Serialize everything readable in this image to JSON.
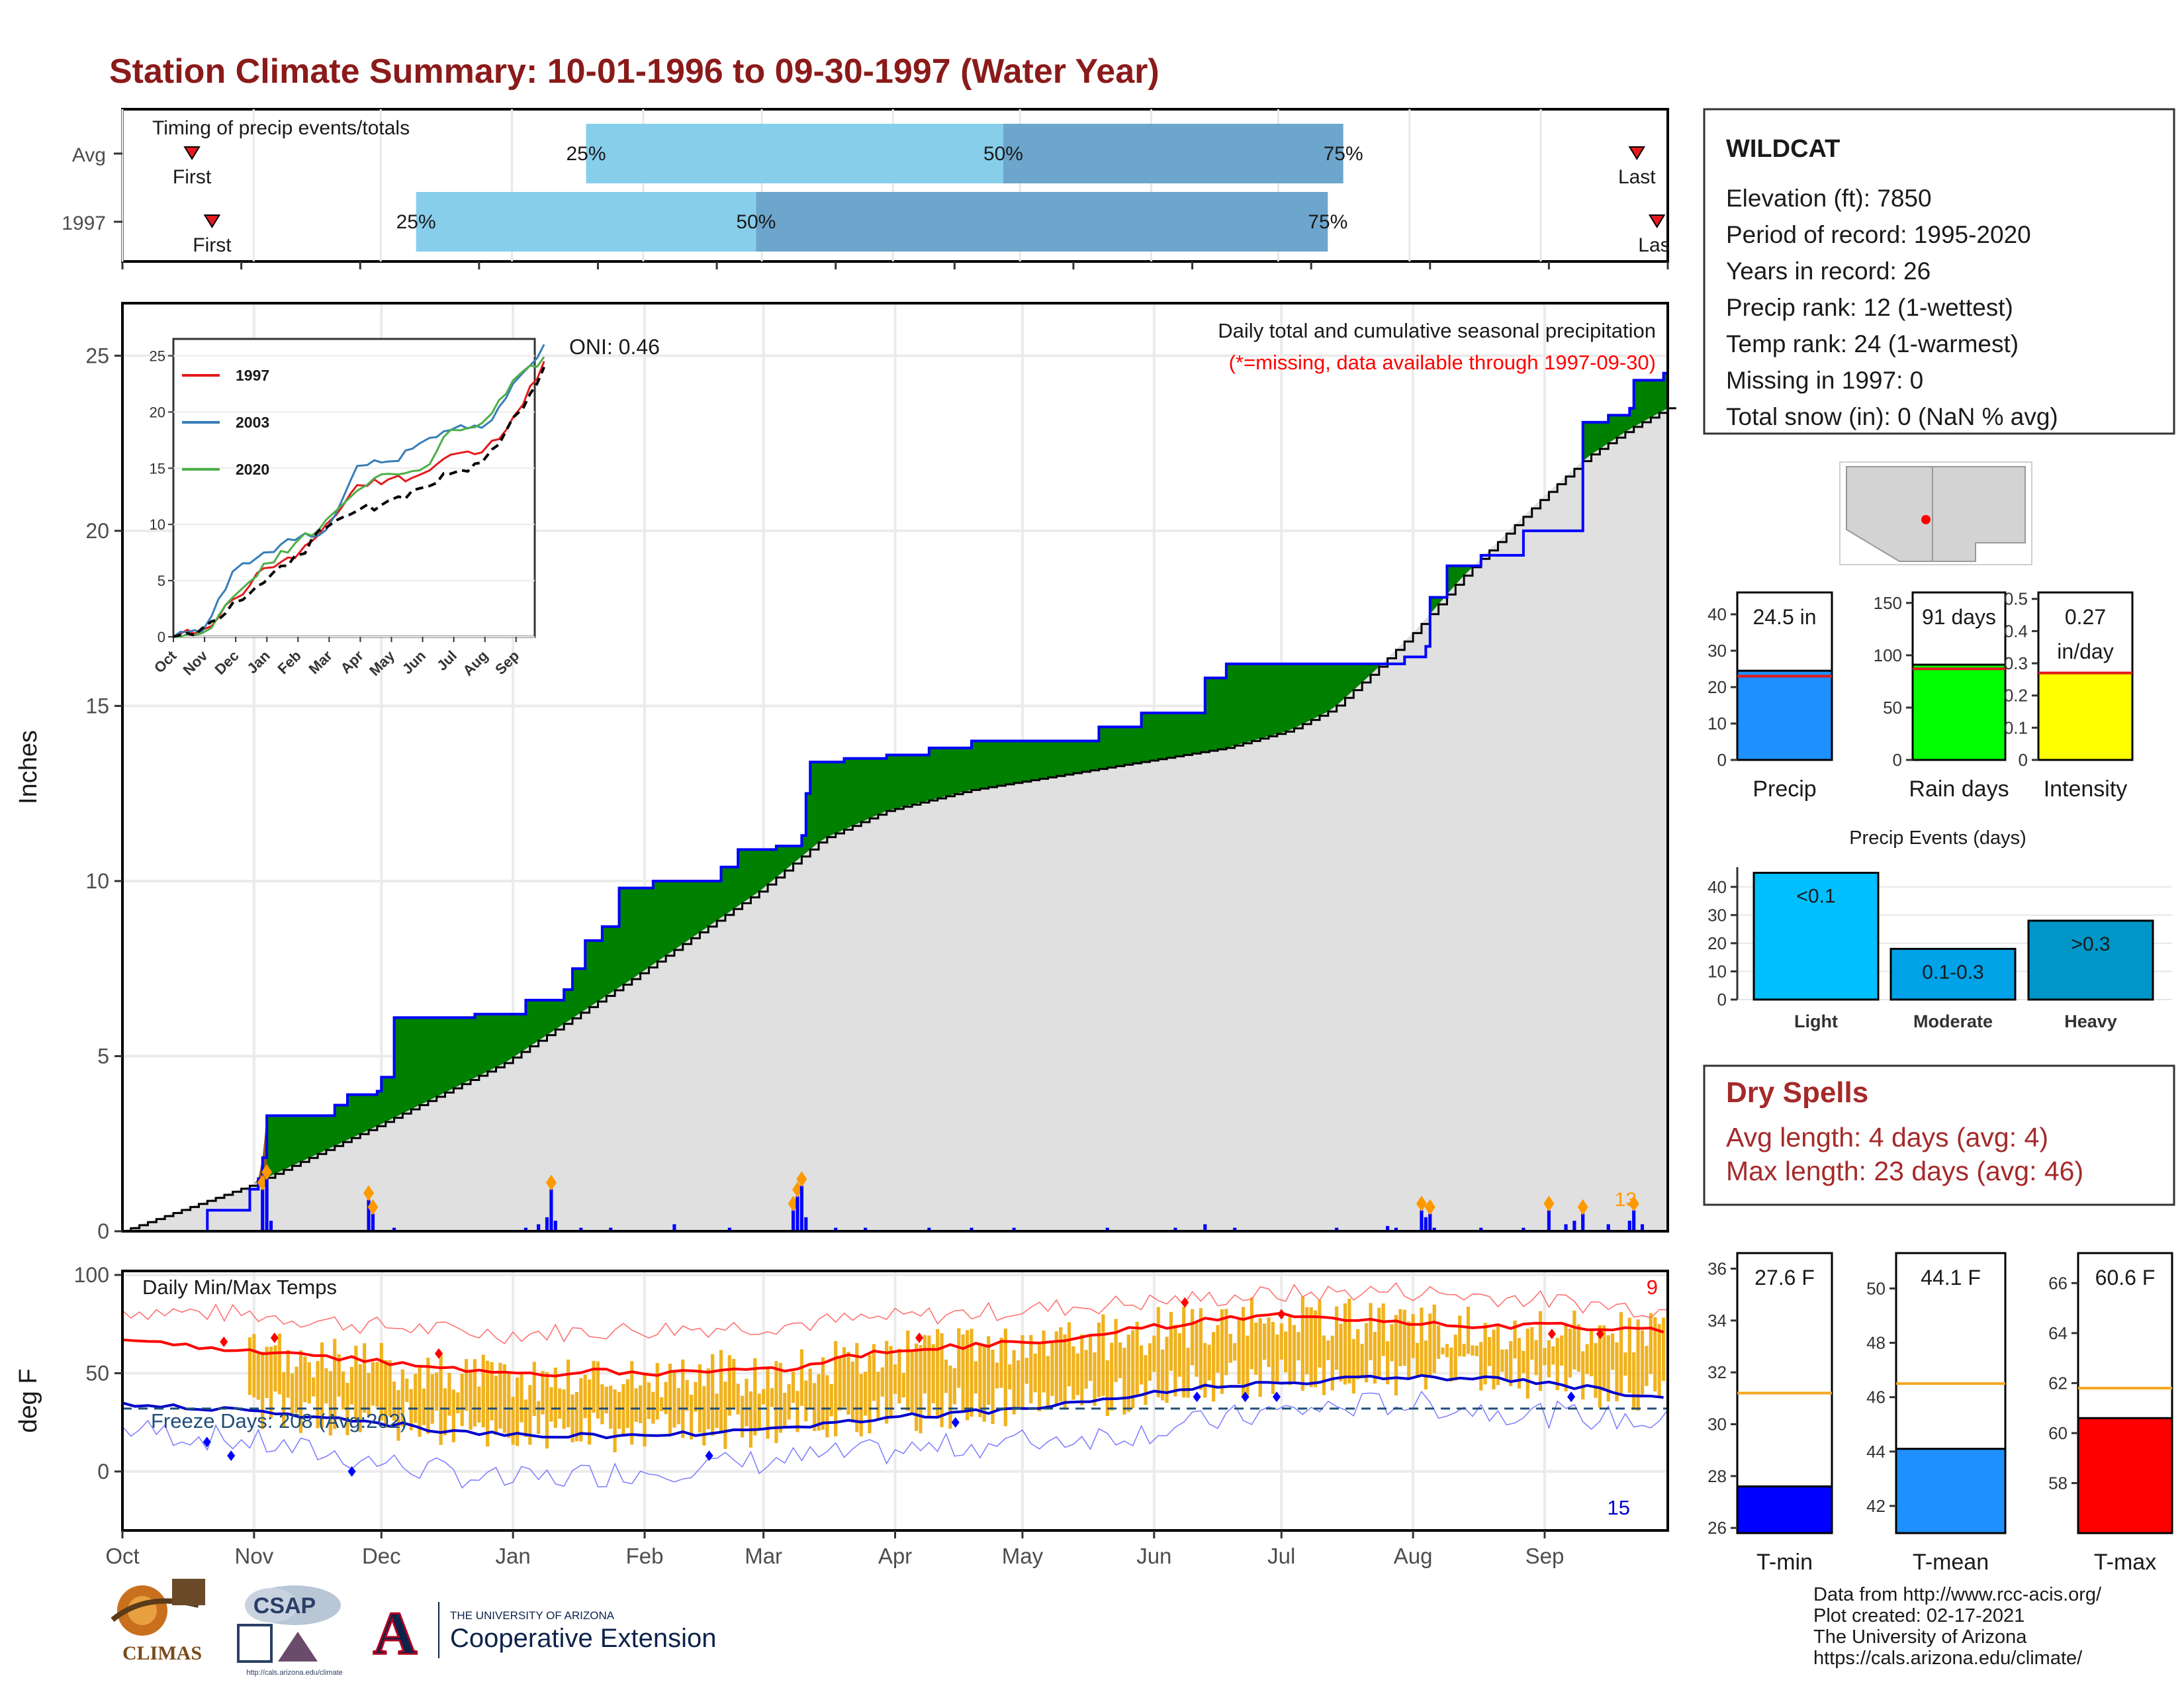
{
  "title": "Station Climate Summary: 10-01-1996 to 09-30-1997 (Water Year)",
  "timing": {
    "label": "Timing of precip events/totals",
    "rows": [
      {
        "name": "Avg",
        "first": "First",
        "last": "Last",
        "p25": 0.3,
        "p50": 0.57,
        "p75": 0.79,
        "first_pos": 0.045,
        "last_pos": 0.98
      },
      {
        "name": "1997",
        "first": "First",
        "last": "Last",
        "p25": 0.19,
        "p50": 0.41,
        "p75": 0.78,
        "first_pos": 0.058,
        "last_pos": 0.993
      }
    ],
    "pct_labels": [
      "25%",
      "50%",
      "75%"
    ]
  },
  "station": {
    "name": "WILDCAT",
    "lines": [
      "Elevation (ft): 7850",
      "Period of record: 1995-2020",
      "Years in record: 26",
      "Precip rank: 12 (1-wettest)",
      "Temp rank: 24 (1-warmest)",
      "Missing in 1997: 0",
      "Total snow (in): 0 (NaN % avg)"
    ]
  },
  "precip_panel": {
    "ylabel": "Inches",
    "oni": "ONI: 0.46",
    "title": "Daily total and cumulative seasonal precipitation",
    "note": "(*=missing, data available through 1997-09-30)",
    "corner_count": "13",
    "ylim": [
      0,
      26.5
    ],
    "yticks": [
      0,
      5,
      10,
      15,
      20,
      25
    ]
  },
  "inset": {
    "years": [
      "1997",
      "2003",
      "2020"
    ],
    "colors": [
      "#e41a1c",
      "#377eb8",
      "#4daf4a"
    ],
    "months": [
      "Oct",
      "Nov",
      "Dec",
      "Jan",
      "Feb",
      "Mar",
      "Apr",
      "May",
      "Jun",
      "Jul",
      "Aug",
      "Sep"
    ],
    "yticks": [
      0,
      5,
      10,
      15,
      20,
      25
    ]
  },
  "temp_panel": {
    "ylabel": "deg F",
    "label": "Daily Min/Max Temps",
    "freeze": "Freeze Days: 208 (Avg:202)",
    "max_count": "9",
    "min_count": "15",
    "ylim": [
      -30,
      100
    ],
    "yticks": [
      0,
      50,
      100
    ]
  },
  "months": [
    "Oct",
    "Nov",
    "Dec",
    "Jan",
    "Feb",
    "Mar",
    "Apr",
    "May",
    "Jun",
    "Jul",
    "Aug",
    "Sep"
  ],
  "month_starts": [
    0,
    31,
    61,
    92,
    123,
    151,
    182,
    212,
    243,
    273,
    304,
    335
  ],
  "chart_data": [
    {
      "type": "area",
      "title": "Daily total and cumulative seasonal precipitation",
      "ylabel": "Inches",
      "ylim": [
        0,
        26.5
      ],
      "cumulative_1997": [
        [
          0,
          0
        ],
        [
          20,
          0.6
        ],
        [
          30,
          1.2
        ],
        [
          32,
          1.5
        ],
        [
          33,
          2.1
        ],
        [
          34,
          3.3
        ],
        [
          45,
          3.3
        ],
        [
          50,
          3.6
        ],
        [
          53,
          3.9
        ],
        [
          60,
          4.0
        ],
        [
          61,
          4.4
        ],
        [
          64,
          6.1
        ],
        [
          75,
          6.1
        ],
        [
          83,
          6.2
        ],
        [
          95,
          6.6
        ],
        [
          104,
          6.9
        ],
        [
          106,
          7.5
        ],
        [
          109,
          8.3
        ],
        [
          113,
          8.7
        ],
        [
          117,
          9.8
        ],
        [
          125,
          10.0
        ],
        [
          135,
          10.0
        ],
        [
          141,
          10.4
        ],
        [
          145,
          10.9
        ],
        [
          154,
          11.0
        ],
        [
          160,
          11.3
        ],
        [
          161,
          12.5
        ],
        [
          162,
          13.4
        ],
        [
          170,
          13.5
        ],
        [
          180,
          13.6
        ],
        [
          190,
          13.8
        ],
        [
          200,
          14.0
        ],
        [
          221,
          14.0
        ],
        [
          230,
          14.4
        ],
        [
          240,
          14.8
        ],
        [
          255,
          15.8
        ],
        [
          260,
          16.2
        ],
        [
          285,
          16.2
        ],
        [
          302,
          16.4
        ],
        [
          307,
          16.7
        ],
        [
          308,
          18.1
        ],
        [
          312,
          19.0
        ],
        [
          320,
          19.3
        ],
        [
          330,
          20.0
        ],
        [
          344,
          23.1
        ],
        [
          350,
          23.3
        ],
        [
          355,
          23.5
        ],
        [
          356,
          24.3
        ],
        [
          363,
          24.5
        ],
        [
          364,
          24.5
        ]
      ],
      "cumulative_avg": [
        [
          0,
          0
        ],
        [
          30,
          1.3
        ],
        [
          60,
          3.0
        ],
        [
          90,
          4.8
        ],
        [
          120,
          7.2
        ],
        [
          150,
          9.7
        ],
        [
          165,
          11.2
        ],
        [
          180,
          12.0
        ],
        [
          200,
          12.6
        ],
        [
          220,
          13.0
        ],
        [
          240,
          13.4
        ],
        [
          260,
          13.8
        ],
        [
          275,
          14.3
        ],
        [
          285,
          14.9
        ],
        [
          295,
          16.0
        ],
        [
          305,
          17.2
        ],
        [
          315,
          18.6
        ],
        [
          325,
          19.8
        ],
        [
          335,
          21.0
        ],
        [
          345,
          22.1
        ],
        [
          355,
          22.9
        ],
        [
          364,
          23.5
        ]
      ],
      "daily_1997": [
        [
          33,
          1.2
        ],
        [
          34,
          1.5
        ],
        [
          35,
          0.3
        ],
        [
          58,
          0.9
        ],
        [
          59,
          0.5
        ],
        [
          64,
          0.1
        ],
        [
          95,
          0.1
        ],
        [
          98,
          0.2
        ],
        [
          100,
          0.4
        ],
        [
          101,
          1.2
        ],
        [
          102,
          0.3
        ],
        [
          108,
          0.1
        ],
        [
          115,
          0.1
        ],
        [
          130,
          0.2
        ],
        [
          143,
          0.1
        ],
        [
          158,
          0.6
        ],
        [
          159,
          1.0
        ],
        [
          160,
          1.3
        ],
        [
          161,
          0.4
        ],
        [
          168,
          0.1
        ],
        [
          175,
          0.1
        ],
        [
          190,
          0.1
        ],
        [
          200,
          0.1
        ],
        [
          210,
          0.1
        ],
        [
          232,
          0.1
        ],
        [
          248,
          0.1
        ],
        [
          255,
          0.2
        ],
        [
          262,
          0.1
        ],
        [
          286,
          0.1
        ],
        [
          298,
          0.15
        ],
        [
          300,
          0.1
        ],
        [
          306,
          0.6
        ],
        [
          307,
          0.4
        ],
        [
          308,
          0.5
        ],
        [
          309,
          0.1
        ],
        [
          320,
          0.1
        ],
        [
          330,
          0.1
        ],
        [
          336,
          0.6
        ],
        [
          340,
          0.2
        ],
        [
          342,
          0.3
        ],
        [
          344,
          0.5
        ],
        [
          350,
          0.2
        ],
        [
          355,
          0.3
        ],
        [
          356,
          0.6
        ],
        [
          358,
          0.2
        ]
      ]
    },
    {
      "type": "line",
      "title": "Cumulative precipitation by year",
      "x": [
        "Oct",
        "Nov",
        "Dec",
        "Jan",
        "Feb",
        "Mar",
        "Apr",
        "May",
        "Jun",
        "Jul",
        "Aug",
        "Sep"
      ],
      "series": [
        {
          "name": "1997",
          "values": [
            0.6,
            3.3,
            6.1,
            7.0,
            10.0,
            13.5,
            14.0,
            14.4,
            16.2,
            16.4,
            19.5,
            24.5
          ]
        },
        {
          "name": "2003",
          "values": [
            0.4,
            5.8,
            7.5,
            8.6,
            9.5,
            15.2,
            15.6,
            17.2,
            18.4,
            18.6,
            22.5,
            26.0
          ]
        },
        {
          "name": "2020",
          "values": [
            0.3,
            3.5,
            6.5,
            8.3,
            10.4,
            13.0,
            14.5,
            14.8,
            18.4,
            19.0,
            22.8,
            24.9
          ]
        },
        {
          "name": "",
          "values": [
            0.7,
            3.0,
            4.8,
            7.2,
            9.7,
            11.2,
            12.1,
            13.2,
            14.5,
            15.5,
            19.5,
            24.0
          ]
        }
      ]
    },
    {
      "type": "bar",
      "title": "",
      "categories": [
        "Precip",
        "Rain days",
        "Intensity"
      ],
      "series": [
        {
          "name": "",
          "values": [
            24.5,
            91,
            0.27
          ],
          "labels": [
            "24.5 in",
            "91 days",
            "0.27 in/day"
          ],
          "averages": [
            23.0,
            87,
            0.27
          ],
          "ylims": [
            [
              0,
              46
            ],
            [
              0,
              160
            ],
            [
              0,
              0.52
            ]
          ],
          "yticks": [
            [
              0,
              10,
              20,
              30,
              40
            ],
            [
              0,
              50,
              100,
              150
            ],
            [
              0.0,
              0.1,
              0.2,
              0.3,
              0.4,
              0.5
            ]
          ],
          "colors": [
            "#1e90ff",
            "#00ff00",
            "#ffff00"
          ]
        }
      ]
    },
    {
      "type": "bar",
      "title": "Precip Events (days)",
      "categories": [
        "Light",
        "Moderate",
        "Heavy"
      ],
      "values": [
        45,
        18,
        28
      ],
      "labels": [
        "<0.1",
        "0.1-0.3",
        ">0.3"
      ],
      "ylim": [
        0,
        47
      ],
      "yticks": [
        0,
        10,
        20,
        30,
        40
      ],
      "colors": [
        "#00bfff",
        "#00a2e8",
        "#0096c7"
      ]
    },
    {
      "type": "bar",
      "title": "",
      "categories": [
        "T-min",
        "T-mean",
        "T-max"
      ],
      "values": [
        27.6,
        44.1,
        60.6
      ],
      "labels": [
        "27.6 F",
        "44.1 F",
        "60.6 F"
      ],
      "averages": [
        31.2,
        46.5,
        61.8
      ],
      "ylims": [
        [
          25.8,
          36.6
        ],
        [
          41.0,
          51.3
        ],
        [
          56.0,
          67.2
        ]
      ],
      "yticks": [
        [
          26,
          28,
          30,
          32,
          34,
          36
        ],
        [
          42,
          44,
          46,
          48,
          50
        ],
        [
          58,
          60,
          62,
          64,
          66
        ]
      ],
      "colors": [
        "#0000ff",
        "#1e90ff",
        "#ff0000"
      ]
    },
    {
      "type": "line",
      "title": "Daily Min/Max Temps",
      "ylabel": "deg F",
      "ylim": [
        -30,
        100
      ],
      "series": [
        {
          "name": "",
          "points": [
            [
              0,
              68
            ],
            [
              20,
              62
            ],
            [
              40,
              60
            ],
            [
              60,
              56
            ],
            [
              80,
              52
            ],
            [
              95,
              49
            ],
            [
              110,
              51
            ],
            [
              125,
              50
            ],
            [
              140,
              52
            ],
            [
              155,
              52
            ],
            [
              170,
              58
            ],
            [
              185,
              62
            ],
            [
              200,
              64
            ],
            [
              215,
              66
            ],
            [
              230,
              70
            ],
            [
              245,
              74
            ],
            [
              260,
              78
            ],
            [
              275,
              80
            ],
            [
              290,
              78
            ],
            [
              305,
              76
            ],
            [
              320,
              74
            ],
            [
              340,
              74
            ],
            [
              364,
              72
            ]
          ]
        },
        {
          "name": "",
          "points": [
            [
              0,
              35
            ],
            [
              20,
              32
            ],
            [
              40,
              28
            ],
            [
              60,
              25
            ],
            [
              80,
              20
            ],
            [
              95,
              18
            ],
            [
              110,
              18
            ],
            [
              125,
              18
            ],
            [
              140,
              20
            ],
            [
              155,
              22
            ],
            [
              170,
              25
            ],
            [
              185,
              28
            ],
            [
              200,
              30
            ],
            [
              215,
              33
            ],
            [
              230,
              36
            ],
            [
              245,
              40
            ],
            [
              260,
              44
            ],
            [
              275,
              45
            ],
            [
              290,
              47
            ],
            [
              305,
              48
            ],
            [
              320,
              47
            ],
            [
              340,
              44
            ],
            [
              364,
              36
            ]
          ]
        },
        {
          "name": "",
          "points": [
            [
              0,
              32
            ],
            [
              364,
              32
            ]
          ]
        },
        {
          "name": "",
          "points": [
            [
              0,
              82
            ],
            [
              30,
              80
            ],
            [
              60,
              74
            ],
            [
              90,
              70
            ],
            [
              120,
              72
            ],
            [
              150,
              74
            ],
            [
              180,
              78
            ],
            [
              210,
              82
            ],
            [
              240,
              86
            ],
            [
              270,
              90
            ],
            [
              300,
              92
            ],
            [
              330,
              88
            ],
            [
              364,
              82
            ]
          ]
        },
        {
          "name": "",
          "points": [
            [
              0,
              22
            ],
            [
              30,
              15
            ],
            [
              60,
              5
            ],
            [
              90,
              -5
            ],
            [
              120,
              0
            ],
            [
              150,
              5
            ],
            [
              180,
              10
            ],
            [
              210,
              15
            ],
            [
              240,
              20
            ],
            [
              270,
              30
            ],
            [
              300,
              35
            ],
            [
              330,
              30
            ],
            [
              364,
              25
            ]
          ]
        }
      ]
    }
  ],
  "dry_spells": {
    "title": "Dry Spells",
    "avg": "Avg length: 4 days (avg: 4)",
    "max": "Max length: 23 days (avg: 46)"
  },
  "credits": [
    "Data from http://www.rcc-acis.org/",
    "Plot created: 02-17-2021",
    "The University of Arizona",
    "https://cals.arizona.edu/climate/"
  ],
  "logos": {
    "climas": "CLIMAS",
    "csap": "CSAP",
    "csap_url": "http://cals.arizona.edu/climate",
    "ua_small": "THE UNIVERSITY OF ARIZONA",
    "ua_big": "Cooperative Extension",
    "ua_letter": "A"
  }
}
